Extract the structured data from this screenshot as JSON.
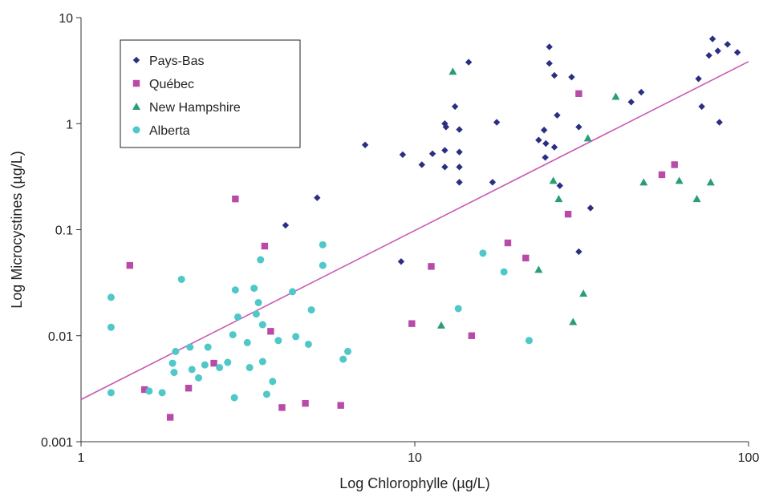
{
  "chart_data": {
    "type": "scatter",
    "title": "",
    "xlabel": "Log Chlorophylle (µg/L)",
    "ylabel": "Log Microcystines (µg/L)",
    "xscale": "log",
    "yscale": "log",
    "xlim": [
      1,
      100
    ],
    "ylim": [
      0.001,
      10
    ],
    "grid": false,
    "legend_position": "top-left",
    "x_ticks": [
      "1",
      "10",
      "100"
    ],
    "y_ticks": [
      "0.001",
      "0.01",
      "0.1",
      "1",
      "10"
    ],
    "series": [
      {
        "name": "Pays-Bas",
        "marker": "diamond",
        "color": "#2b2f83",
        "points": [
          [
            4.1,
            0.11
          ],
          [
            5.1,
            0.2
          ],
          [
            7.1,
            0.63
          ],
          [
            9.1,
            0.05
          ],
          [
            9.2,
            0.51
          ],
          [
            10.5,
            0.41
          ],
          [
            11.3,
            0.52
          ],
          [
            12.3,
            0.56
          ],
          [
            12.3,
            1.0
          ],
          [
            12.3,
            0.39
          ],
          [
            12.4,
            0.93
          ],
          [
            13.2,
            1.45
          ],
          [
            13.6,
            0.88
          ],
          [
            13.6,
            0.54
          ],
          [
            13.6,
            0.39
          ],
          [
            13.6,
            0.28
          ],
          [
            14.5,
            3.8
          ],
          [
            17.1,
            0.28
          ],
          [
            17.6,
            1.03
          ],
          [
            23.5,
            0.7
          ],
          [
            24.4,
            0.87
          ],
          [
            24.7,
            0.65
          ],
          [
            24.6,
            0.48
          ],
          [
            25.3,
            5.3
          ],
          [
            25.3,
            3.7
          ],
          [
            26.2,
            2.85
          ],
          [
            26.2,
            0.6
          ],
          [
            26.7,
            1.2
          ],
          [
            27.2,
            0.26
          ],
          [
            29.5,
            2.75
          ],
          [
            31,
            0.93
          ],
          [
            31,
            0.062
          ],
          [
            33.6,
            0.16
          ],
          [
            44.5,
            1.6
          ],
          [
            47.7,
            1.98
          ],
          [
            70.8,
            2.65
          ],
          [
            72.4,
            1.45
          ],
          [
            76.1,
            4.4
          ],
          [
            78,
            6.3
          ],
          [
            80.9,
            4.85
          ],
          [
            81.8,
            1.03
          ],
          [
            86.5,
            5.6
          ],
          [
            92.6,
            4.7
          ]
        ]
      },
      {
        "name": "Québec",
        "marker": "square",
        "color": "#b94aa8",
        "points": [
          [
            1.4,
            0.046
          ],
          [
            1.55,
            0.0031
          ],
          [
            1.85,
            0.0017
          ],
          [
            2.1,
            0.0032
          ],
          [
            2.5,
            0.0055
          ],
          [
            2.9,
            0.195
          ],
          [
            3.55,
            0.07
          ],
          [
            3.7,
            0.011
          ],
          [
            4.0,
            0.0021
          ],
          [
            4.7,
            0.0023
          ],
          [
            6.0,
            0.0022
          ],
          [
            9.8,
            0.013
          ],
          [
            11.2,
            0.045
          ],
          [
            14.8,
            0.01
          ],
          [
            19.0,
            0.075
          ],
          [
            21.5,
            0.054
          ],
          [
            28.8,
            0.14
          ],
          [
            31.0,
            1.92
          ],
          [
            55.0,
            0.33
          ],
          [
            60.0,
            0.41
          ]
        ]
      },
      {
        "name": "New Hampshire",
        "marker": "triangle",
        "color": "#2a9d74",
        "points": [
          [
            12.0,
            0.0125
          ],
          [
            13.0,
            3.1
          ],
          [
            23.5,
            0.042
          ],
          [
            26.0,
            0.29
          ],
          [
            27.0,
            0.195
          ],
          [
            29.8,
            0.0135
          ],
          [
            32.0,
            0.025
          ],
          [
            33.0,
            0.73
          ],
          [
            40.0,
            1.8
          ],
          [
            48.5,
            0.28
          ],
          [
            62.0,
            0.29
          ],
          [
            70.0,
            0.195
          ],
          [
            77.0,
            0.28
          ]
        ]
      },
      {
        "name": "Alberta",
        "marker": "circle",
        "color": "#4ec8c8",
        "points": [
          [
            1.23,
            0.023
          ],
          [
            1.23,
            0.012
          ],
          [
            1.23,
            0.0029
          ],
          [
            1.6,
            0.003
          ],
          [
            1.75,
            0.0029
          ],
          [
            1.88,
            0.0055
          ],
          [
            1.9,
            0.0045
          ],
          [
            1.92,
            0.0071
          ],
          [
            2.0,
            0.034
          ],
          [
            2.12,
            0.0078
          ],
          [
            2.15,
            0.0048
          ],
          [
            2.25,
            0.004
          ],
          [
            2.35,
            0.0053
          ],
          [
            2.4,
            0.0078
          ],
          [
            2.6,
            0.005
          ],
          [
            2.75,
            0.0056
          ],
          [
            2.85,
            0.0102
          ],
          [
            2.88,
            0.0026
          ],
          [
            2.9,
            0.027
          ],
          [
            2.95,
            0.015
          ],
          [
            3.15,
            0.0086
          ],
          [
            3.2,
            0.005
          ],
          [
            3.3,
            0.028
          ],
          [
            3.35,
            0.016
          ],
          [
            3.4,
            0.0205
          ],
          [
            3.45,
            0.052
          ],
          [
            3.5,
            0.0127
          ],
          [
            3.5,
            0.0057
          ],
          [
            3.6,
            0.0028
          ],
          [
            3.75,
            0.0037
          ],
          [
            3.9,
            0.009
          ],
          [
            4.3,
            0.026
          ],
          [
            4.4,
            0.0098
          ],
          [
            4.8,
            0.0083
          ],
          [
            4.9,
            0.0175
          ],
          [
            5.3,
            0.072
          ],
          [
            5.3,
            0.046
          ],
          [
            6.1,
            0.006
          ],
          [
            6.3,
            0.0071
          ],
          [
            13.5,
            0.018
          ],
          [
            16.0,
            0.06
          ],
          [
            18.5,
            0.04
          ],
          [
            22.0,
            0.009
          ]
        ]
      }
    ],
    "trendline": {
      "color": "#c85ab3",
      "points": [
        [
          1,
          0.0025
        ],
        [
          100,
          3.85
        ]
      ]
    }
  }
}
